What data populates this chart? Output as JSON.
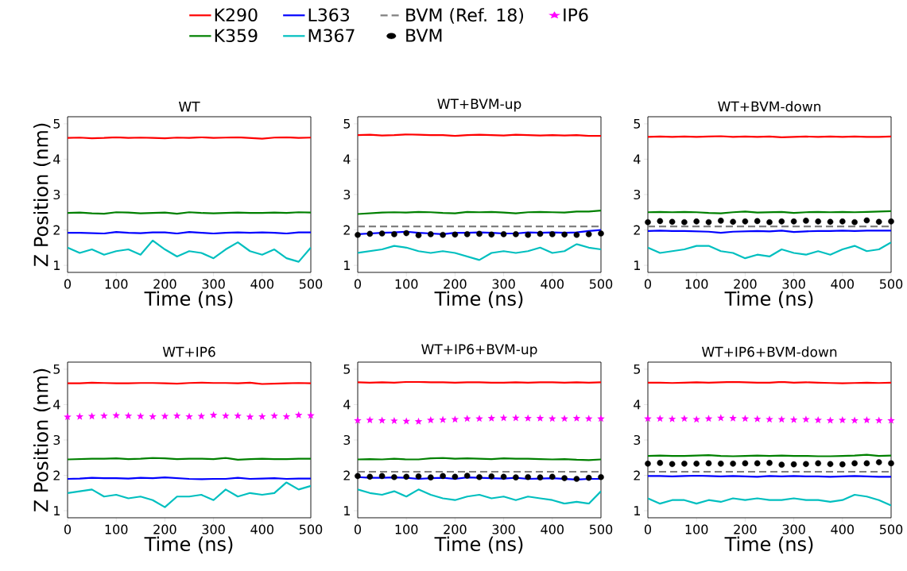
{
  "chart_data": [
    {
      "type": "line",
      "title": "WT",
      "xlabel": "Time (ns)",
      "ylabel": "Z Position (nm)",
      "xlim": [
        0,
        500
      ],
      "ylim": [
        0.8,
        5.2
      ],
      "xticks": [
        0,
        100,
        200,
        300,
        400,
        500
      ],
      "yticks": [
        1,
        2,
        3,
        4,
        5
      ],
      "x": [
        0,
        25,
        50,
        75,
        100,
        125,
        150,
        175,
        200,
        225,
        250,
        275,
        300,
        325,
        350,
        375,
        400,
        425,
        450,
        475,
        500
      ],
      "series": [
        {
          "color": "#ff0000",
          "values": [
            4.6,
            4.61,
            4.59,
            4.6,
            4.62,
            4.6,
            4.61,
            4.6,
            4.59,
            4.61,
            4.6,
            4.62,
            4.6,
            4.61,
            4.62,
            4.6,
            4.58,
            4.61,
            4.62,
            4.6,
            4.61
          ]
        },
        {
          "color": "#008000",
          "values": [
            2.48,
            2.49,
            2.47,
            2.46,
            2.5,
            2.49,
            2.47,
            2.48,
            2.49,
            2.46,
            2.5,
            2.48,
            2.47,
            2.48,
            2.49,
            2.48,
            2.48,
            2.49,
            2.48,
            2.5,
            2.49
          ]
        },
        {
          "color": "#0000ff",
          "values": [
            1.92,
            1.92,
            1.91,
            1.9,
            1.94,
            1.92,
            1.91,
            1.93,
            1.93,
            1.9,
            1.94,
            1.92,
            1.9,
            1.92,
            1.93,
            1.92,
            1.93,
            1.92,
            1.9,
            1.93,
            1.93
          ]
        },
        {
          "color": "#00bfbf",
          "values": [
            1.5,
            1.35,
            1.45,
            1.3,
            1.4,
            1.45,
            1.3,
            1.7,
            1.45,
            1.25,
            1.4,
            1.35,
            1.2,
            1.45,
            1.65,
            1.4,
            1.3,
            1.45,
            1.2,
            1.1,
            1.5
          ]
        }
      ]
    },
    {
      "type": "line",
      "title": "WT+BVM-up",
      "xlabel": "Time (ns)",
      "xlim": [
        0,
        500
      ],
      "ylim": [
        0.8,
        5.2
      ],
      "xticks": [
        0,
        100,
        200,
        300,
        400,
        500
      ],
      "yticks": [
        1,
        2,
        3,
        4,
        5
      ],
      "x": [
        0,
        25,
        50,
        75,
        100,
        125,
        150,
        175,
        200,
        225,
        250,
        275,
        300,
        325,
        350,
        375,
        400,
        425,
        450,
        475,
        500
      ],
      "series": [
        {
          "color": "#ff0000",
          "values": [
            4.68,
            4.69,
            4.67,
            4.68,
            4.7,
            4.69,
            4.68,
            4.68,
            4.66,
            4.68,
            4.69,
            4.68,
            4.67,
            4.69,
            4.68,
            4.67,
            4.68,
            4.67,
            4.68,
            4.66,
            4.66
          ]
        },
        {
          "color": "#008000",
          "values": [
            2.45,
            2.47,
            2.49,
            2.5,
            2.49,
            2.51,
            2.5,
            2.48,
            2.47,
            2.51,
            2.5,
            2.51,
            2.49,
            2.47,
            2.5,
            2.51,
            2.5,
            2.49,
            2.52,
            2.52,
            2.55
          ]
        },
        {
          "color": "#0000ff",
          "values": [
            1.88,
            1.9,
            1.92,
            1.93,
            1.95,
            1.92,
            1.9,
            1.88,
            1.92,
            1.92,
            1.93,
            1.92,
            1.9,
            1.9,
            1.93,
            1.92,
            1.93,
            1.92,
            1.93,
            1.97,
            2.0
          ]
        },
        {
          "color": "#00bfbf",
          "values": [
            1.35,
            1.4,
            1.45,
            1.55,
            1.5,
            1.4,
            1.35,
            1.4,
            1.35,
            1.25,
            1.15,
            1.35,
            1.4,
            1.35,
            1.4,
            1.5,
            1.35,
            1.4,
            1.6,
            1.5,
            1.45
          ]
        },
        {
          "color": "#000000",
          "type": "scatter",
          "marker": "circle",
          "values": [
            1.86,
            1.89,
            1.9,
            1.88,
            1.91,
            1.85,
            1.88,
            1.86,
            1.87,
            1.88,
            1.89,
            1.87,
            1.88,
            1.88,
            1.86,
            1.89,
            1.88,
            1.87,
            1.86,
            1.88,
            1.9
          ]
        }
      ],
      "ref_lines": [
        {
          "axis": "y",
          "value": 2.1,
          "color": "#808080",
          "line_style": "dashed"
        }
      ]
    },
    {
      "type": "line",
      "title": "WT+BVM-down",
      "xlabel": "Time (ns)",
      "xlim": [
        0,
        500
      ],
      "ylim": [
        0.8,
        5.2
      ],
      "xticks": [
        0,
        100,
        200,
        300,
        400,
        500
      ],
      "yticks": [
        1,
        2,
        3,
        4,
        5
      ],
      "x": [
        0,
        25,
        50,
        75,
        100,
        125,
        150,
        175,
        200,
        225,
        250,
        275,
        300,
        325,
        350,
        375,
        400,
        425,
        450,
        475,
        500
      ],
      "series": [
        {
          "color": "#ff0000",
          "values": [
            4.63,
            4.64,
            4.63,
            4.64,
            4.63,
            4.64,
            4.65,
            4.63,
            4.64,
            4.63,
            4.64,
            4.62,
            4.63,
            4.64,
            4.63,
            4.64,
            4.63,
            4.64,
            4.63,
            4.63,
            4.64
          ]
        },
        {
          "color": "#008000",
          "values": [
            2.5,
            2.51,
            2.5,
            2.51,
            2.5,
            2.48,
            2.47,
            2.5,
            2.52,
            2.49,
            2.5,
            2.51,
            2.48,
            2.5,
            2.51,
            2.5,
            2.51,
            2.5,
            2.51,
            2.52,
            2.53
          ]
        },
        {
          "color": "#0000ff",
          "values": [
            1.97,
            1.98,
            1.97,
            1.97,
            1.96,
            1.95,
            1.92,
            1.95,
            1.96,
            1.97,
            1.96,
            1.98,
            1.94,
            1.96,
            1.97,
            1.97,
            1.98,
            1.97,
            1.98,
            1.98,
            1.98
          ]
        },
        {
          "color": "#00bfbf",
          "values": [
            1.5,
            1.35,
            1.4,
            1.45,
            1.55,
            1.55,
            1.4,
            1.35,
            1.2,
            1.3,
            1.25,
            1.45,
            1.35,
            1.3,
            1.4,
            1.3,
            1.45,
            1.55,
            1.4,
            1.45,
            1.65
          ]
        },
        {
          "color": "#000000",
          "type": "scatter",
          "marker": "circle",
          "values": [
            2.22,
            2.25,
            2.23,
            2.22,
            2.24,
            2.22,
            2.26,
            2.23,
            2.24,
            2.25,
            2.22,
            2.24,
            2.24,
            2.26,
            2.24,
            2.23,
            2.24,
            2.22,
            2.27,
            2.23,
            2.24
          ]
        }
      ],
      "ref_lines": [
        {
          "axis": "y",
          "value": 2.1,
          "color": "#808080",
          "line_style": "dashed"
        }
      ]
    },
    {
      "type": "line",
      "title": "WT+IP6",
      "xlabel": "Time (ns)",
      "ylabel": "Z Position (nm)",
      "xlim": [
        0,
        500
      ],
      "ylim": [
        0.8,
        5.2
      ],
      "xticks": [
        0,
        100,
        200,
        300,
        400,
        500
      ],
      "yticks": [
        1,
        2,
        3,
        4,
        5
      ],
      "x": [
        0,
        25,
        50,
        75,
        100,
        125,
        150,
        175,
        200,
        225,
        250,
        275,
        300,
        325,
        350,
        375,
        400,
        425,
        450,
        475,
        500
      ],
      "series": [
        {
          "color": "#ff0000",
          "values": [
            4.6,
            4.6,
            4.62,
            4.61,
            4.6,
            4.6,
            4.61,
            4.61,
            4.6,
            4.59,
            4.61,
            4.62,
            4.61,
            4.61,
            4.6,
            4.62,
            4.58,
            4.59,
            4.6,
            4.61,
            4.6
          ]
        },
        {
          "color": "#008000",
          "values": [
            2.45,
            2.46,
            2.47,
            2.47,
            2.48,
            2.46,
            2.47,
            2.49,
            2.48,
            2.46,
            2.47,
            2.47,
            2.46,
            2.49,
            2.44,
            2.46,
            2.47,
            2.46,
            2.46,
            2.47,
            2.47
          ]
        },
        {
          "color": "#0000ff",
          "values": [
            1.9,
            1.91,
            1.93,
            1.92,
            1.92,
            1.91,
            1.93,
            1.92,
            1.94,
            1.92,
            1.9,
            1.89,
            1.9,
            1.9,
            1.93,
            1.9,
            1.91,
            1.92,
            1.9,
            1.91,
            1.91
          ]
        },
        {
          "color": "#00bfbf",
          "values": [
            1.5,
            1.55,
            1.6,
            1.4,
            1.45,
            1.35,
            1.4,
            1.3,
            1.1,
            1.4,
            1.4,
            1.45,
            1.3,
            1.6,
            1.4,
            1.5,
            1.45,
            1.5,
            1.8,
            1.6,
            1.7
          ]
        },
        {
          "color": "#ff00ff",
          "type": "scatter",
          "marker": "star",
          "values": [
            3.65,
            3.66,
            3.67,
            3.68,
            3.69,
            3.68,
            3.67,
            3.66,
            3.67,
            3.68,
            3.66,
            3.67,
            3.7,
            3.68,
            3.68,
            3.65,
            3.66,
            3.68,
            3.66,
            3.7,
            3.69
          ]
        }
      ]
    },
    {
      "type": "line",
      "title": "WT+IP6+BVM-up",
      "xlabel": "Time (ns)",
      "xlim": [
        0,
        500
      ],
      "ylim": [
        0.8,
        5.2
      ],
      "xticks": [
        0,
        100,
        200,
        300,
        400,
        500
      ],
      "yticks": [
        1,
        2,
        3,
        4,
        5
      ],
      "legend": "top",
      "x": [
        0,
        25,
        50,
        75,
        100,
        125,
        150,
        175,
        200,
        225,
        250,
        275,
        300,
        325,
        350,
        375,
        400,
        425,
        450,
        475,
        500
      ],
      "series": [
        {
          "name": "K290",
          "color": "#ff0000",
          "values": [
            4.63,
            4.62,
            4.63,
            4.62,
            4.64,
            4.64,
            4.63,
            4.63,
            4.62,
            4.63,
            4.63,
            4.62,
            4.62,
            4.63,
            4.62,
            4.63,
            4.63,
            4.62,
            4.63,
            4.62,
            4.63
          ]
        },
        {
          "name": "K359",
          "color": "#008000",
          "values": [
            2.45,
            2.46,
            2.45,
            2.47,
            2.45,
            2.45,
            2.48,
            2.49,
            2.47,
            2.48,
            2.47,
            2.46,
            2.48,
            2.47,
            2.47,
            2.46,
            2.45,
            2.46,
            2.44,
            2.43,
            2.45
          ]
        },
        {
          "name": "L363",
          "color": "#0000ff",
          "values": [
            1.95,
            1.93,
            1.93,
            1.94,
            1.93,
            1.9,
            1.92,
            1.93,
            1.9,
            1.94,
            1.93,
            1.92,
            1.91,
            1.93,
            1.9,
            1.91,
            1.92,
            1.9,
            1.88,
            1.9,
            1.9
          ]
        },
        {
          "name": "M367",
          "color": "#00bfbf",
          "values": [
            1.6,
            1.5,
            1.45,
            1.55,
            1.4,
            1.6,
            1.45,
            1.35,
            1.3,
            1.4,
            1.45,
            1.35,
            1.4,
            1.3,
            1.4,
            1.35,
            1.3,
            1.2,
            1.25,
            1.2,
            1.55
          ]
        },
        {
          "name": "BVM",
          "color": "#000000",
          "type": "scatter",
          "marker": "circle",
          "values": [
            1.98,
            1.96,
            1.98,
            1.95,
            1.96,
            1.97,
            1.94,
            1.98,
            1.96,
            1.99,
            1.95,
            1.97,
            1.96,
            1.94,
            1.95,
            1.94,
            1.96,
            1.92,
            1.9,
            1.93,
            1.95
          ]
        },
        {
          "name": "IP6",
          "color": "#ff00ff",
          "type": "scatter",
          "marker": "star",
          "values": [
            3.55,
            3.56,
            3.55,
            3.54,
            3.53,
            3.52,
            3.56,
            3.57,
            3.58,
            3.6,
            3.6,
            3.61,
            3.62,
            3.62,
            3.61,
            3.61,
            3.6,
            3.6,
            3.61,
            3.6,
            3.6
          ]
        }
      ],
      "ref_lines": [
        {
          "axis": "y",
          "value": 2.1,
          "label": "BVM (Ref. 18)",
          "color": "#808080",
          "line_style": "dashed"
        }
      ]
    },
    {
      "type": "line",
      "title": "WT+IP6+BVM-down",
      "xlabel": "Time (ns)",
      "xlim": [
        0,
        500
      ],
      "ylim": [
        0.8,
        5.2
      ],
      "xticks": [
        0,
        100,
        200,
        300,
        400,
        500
      ],
      "yticks": [
        1,
        2,
        3,
        4,
        5
      ],
      "x": [
        0,
        25,
        50,
        75,
        100,
        125,
        150,
        175,
        200,
        225,
        250,
        275,
        300,
        325,
        350,
        375,
        400,
        425,
        450,
        475,
        500
      ],
      "series": [
        {
          "color": "#ff0000",
          "values": [
            4.62,
            4.62,
            4.61,
            4.62,
            4.63,
            4.62,
            4.63,
            4.64,
            4.63,
            4.62,
            4.62,
            4.64,
            4.62,
            4.63,
            4.62,
            4.61,
            4.6,
            4.61,
            4.62,
            4.61,
            4.62
          ]
        },
        {
          "color": "#008000",
          "values": [
            2.55,
            2.56,
            2.55,
            2.55,
            2.56,
            2.57,
            2.55,
            2.54,
            2.55,
            2.56,
            2.55,
            2.56,
            2.55,
            2.55,
            2.54,
            2.54,
            2.55,
            2.56,
            2.58,
            2.55,
            2.56
          ]
        },
        {
          "color": "#0000ff",
          "values": [
            1.98,
            1.98,
            1.97,
            1.98,
            1.99,
            1.98,
            1.97,
            1.98,
            1.97,
            1.96,
            1.98,
            1.97,
            1.98,
            1.97,
            1.97,
            1.96,
            1.97,
            1.98,
            1.97,
            1.96,
            1.96
          ]
        },
        {
          "color": "#00bfbf",
          "values": [
            1.35,
            1.2,
            1.3,
            1.3,
            1.2,
            1.3,
            1.25,
            1.35,
            1.3,
            1.35,
            1.3,
            1.3,
            1.35,
            1.3,
            1.3,
            1.25,
            1.3,
            1.45,
            1.4,
            1.3,
            1.15
          ]
        },
        {
          "color": "#000000",
          "type": "scatter",
          "marker": "circle",
          "values": [
            2.33,
            2.35,
            2.32,
            2.33,
            2.33,
            2.34,
            2.33,
            2.33,
            2.34,
            2.34,
            2.35,
            2.3,
            2.31,
            2.32,
            2.34,
            2.32,
            2.31,
            2.34,
            2.34,
            2.37,
            2.34
          ]
        },
        {
          "color": "#ff00ff",
          "type": "scatter",
          "marker": "star",
          "values": [
            3.6,
            3.6,
            3.59,
            3.6,
            3.58,
            3.6,
            3.62,
            3.61,
            3.6,
            3.59,
            3.58,
            3.58,
            3.57,
            3.58,
            3.56,
            3.55,
            3.56,
            3.55,
            3.56,
            3.55,
            3.55
          ]
        }
      ],
      "ref_lines": [
        {
          "axis": "y",
          "value": 2.1,
          "color": "#808080",
          "line_style": "dashed"
        }
      ]
    }
  ]
}
